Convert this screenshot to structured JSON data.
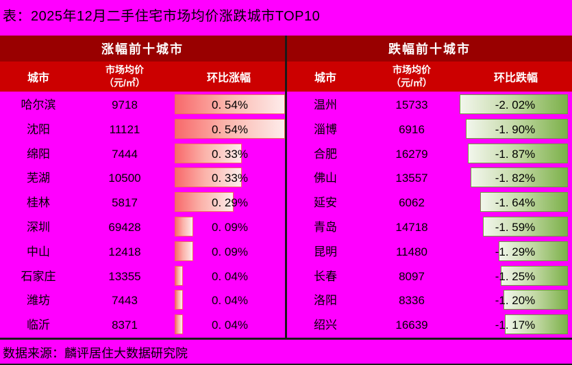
{
  "title": "表：2025年12月二手住宅市场均价涨跌城市TOP10",
  "footer": "数据来源：麟评居住大数据研究院",
  "colors": {
    "background": "#FF00FF",
    "header_band_dark": "#990000",
    "header_band_red": "#CC0000",
    "header_text": "#FFFFFF",
    "body_text": "#000000",
    "divider_line": "#1A1A1A",
    "bar_up_solid": "#F8696B",
    "bar_up_fade": "#FDECEA",
    "bar_up_border": "#F0685C",
    "bar_down_solid": "#7CB14A",
    "bar_down_fade": "#F2F6EC",
    "bar_down_border": "#6F9F3C"
  },
  "chart_data": [
    {
      "type": "bar",
      "title": "涨幅前十城市",
      "bar_direction": "up",
      "bar_anchor": "left",
      "columns": {
        "city": "城市",
        "price_line1": "市场均价",
        "price_line2": "（元/㎡）",
        "change": "环比涨幅"
      },
      "value_range": [
        0,
        0.54
      ],
      "rows": [
        {
          "city": "哈尔滨",
          "price": "9718",
          "change": 0.54,
          "change_label": "0. 54%"
        },
        {
          "city": "沈阳",
          "price": "11121",
          "change": 0.54,
          "change_label": "0. 54%"
        },
        {
          "city": "绵阳",
          "price": "7444",
          "change": 0.33,
          "change_label": "0. 33%"
        },
        {
          "city": "芜湖",
          "price": "10500",
          "change": 0.33,
          "change_label": "0. 33%"
        },
        {
          "city": "桂林",
          "price": "5817",
          "change": 0.29,
          "change_label": "0. 29%"
        },
        {
          "city": "深圳",
          "price": "69428",
          "change": 0.09,
          "change_label": "0. 09%"
        },
        {
          "city": "中山",
          "price": "12418",
          "change": 0.09,
          "change_label": "0. 09%"
        },
        {
          "city": "石家庄",
          "price": "13355",
          "change": 0.04,
          "change_label": "0. 04%"
        },
        {
          "city": "潍坊",
          "price": "7443",
          "change": 0.04,
          "change_label": "0. 04%"
        },
        {
          "city": "临沂",
          "price": "8371",
          "change": 0.04,
          "change_label": "0. 04%"
        }
      ]
    },
    {
      "type": "bar",
      "title": "跌幅前十城市",
      "bar_direction": "down",
      "bar_anchor": "right",
      "columns": {
        "city": "城市",
        "price_line1": "市场均价",
        "price_line2": "（元/㎡）",
        "change": "环比跌幅"
      },
      "value_range": [
        -2.02,
        0
      ],
      "rows": [
        {
          "city": "温州",
          "price": "15733",
          "change": -2.02,
          "change_label": "-2. 02%"
        },
        {
          "city": "淄博",
          "price": "6916",
          "change": -1.9,
          "change_label": "-1. 90%"
        },
        {
          "city": "合肥",
          "price": "16279",
          "change": -1.87,
          "change_label": "-1. 87%"
        },
        {
          "city": "佛山",
          "price": "13557",
          "change": -1.82,
          "change_label": "-1. 82%"
        },
        {
          "city": "延安",
          "price": "6062",
          "change": -1.64,
          "change_label": "-1. 64%"
        },
        {
          "city": "青岛",
          "price": "14718",
          "change": -1.59,
          "change_label": "-1. 59%"
        },
        {
          "city": "昆明",
          "price": "11480",
          "change": -1.29,
          "change_label": "-1. 29%"
        },
        {
          "city": "长春",
          "price": "8097",
          "change": -1.25,
          "change_label": "-1. 25%"
        },
        {
          "city": "洛阳",
          "price": "8336",
          "change": -1.2,
          "change_label": "-1. 20%"
        },
        {
          "city": "绍兴",
          "price": "16639",
          "change": -1.17,
          "change_label": "-1. 17%"
        }
      ]
    }
  ]
}
